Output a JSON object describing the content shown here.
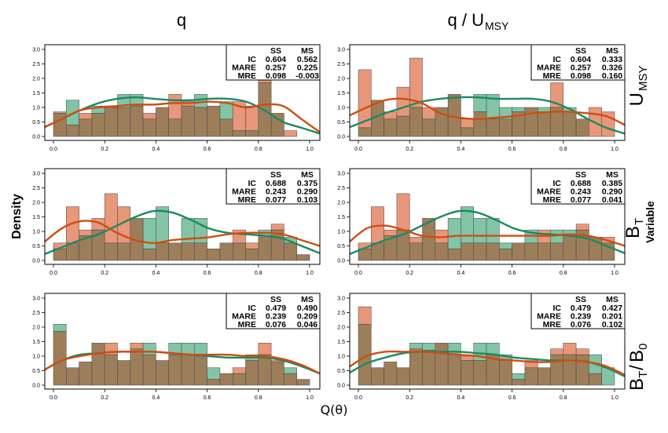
{
  "figure": {
    "col_titles": [
      "q",
      "q / U",
      "MSY"
    ],
    "row_labels": [
      {
        "main": "U",
        "sub": "MSY",
        "extra": ""
      },
      {
        "main": "B",
        "sub": "T",
        "extra": "Variable"
      },
      {
        "main": "B",
        "sub": "T",
        "div": "/",
        "main2": "B",
        "sub2": "0",
        "extra": ""
      }
    ],
    "ylabel": "Density",
    "xlabel": "Q(θ)"
  },
  "colors": {
    "ss_fill": "#82c4a6",
    "ms_fill": "#e8977a",
    "overlap_fill": "#9c7e5a",
    "ss_line": "#1b8a62",
    "ms_line": "#cf4d10"
  },
  "chart_data": [
    {
      "type": "bar",
      "id": "r1c1",
      "x_ticks": [
        "0.0",
        "0.2",
        "0.4",
        "0.6",
        "0.8",
        "1.0"
      ],
      "y_ticks": [
        "0.0",
        "0.5",
        "1.0",
        "1.5",
        "2.0",
        "2.5",
        "3.0"
      ],
      "xlim": [
        0,
        1
      ],
      "ylim": [
        0,
        3.0
      ],
      "bin_width": 0.05,
      "ss_hist": [
        0.8,
        1.25,
        0.6,
        1.05,
        1.0,
        1.45,
        1.45,
        0.6,
        1.0,
        0.6,
        1.05,
        1.45,
        1.05,
        1.2,
        0.2,
        0.2,
        1.85,
        0.8,
        0,
        0
      ],
      "ms_hist": [
        0.85,
        0.4,
        0.8,
        0.8,
        1.05,
        1.0,
        1.05,
        0.8,
        1.0,
        1.45,
        1.2,
        1.0,
        1.05,
        0.6,
        1.2,
        1.05,
        2.1,
        0.8,
        0.2,
        0
      ],
      "ss_density": [
        0.3,
        0.6,
        0.9,
        1.15,
        1.3,
        1.35,
        1.3,
        1.25,
        1.25,
        1.3,
        1.3,
        1.2,
        0.9,
        0.5,
        0.3,
        0.1
      ],
      "ms_density": [
        0.3,
        0.6,
        0.9,
        1.0,
        1.05,
        1.1,
        1.1,
        1.15,
        1.15,
        1.2,
        1.15,
        1.0,
        1.1,
        1.05,
        0.6,
        0.15
      ],
      "stats": {
        "headers": [
          "SS",
          "MS"
        ],
        "rows": [
          {
            "label": "IC",
            "ss": "0.604",
            "ms": "0.562"
          },
          {
            "label": "MARE",
            "ss": "0.257",
            "ms": "0.225"
          },
          {
            "label": "MRE",
            "ss": "0.098",
            "ms": "-0.003"
          }
        ]
      }
    },
    {
      "type": "bar",
      "id": "r1c2",
      "x_ticks": [
        "0.0",
        "0.2",
        "0.4",
        "0.6",
        "0.8",
        "1.0"
      ],
      "y_ticks": [
        "0.0",
        "0.5",
        "1.0",
        "1.5",
        "2.0",
        "2.5",
        "3.0"
      ],
      "xlim": [
        0,
        1
      ],
      "ylim": [
        0,
        3.0
      ],
      "bin_width": 0.05,
      "ss_hist": [
        0.3,
        1.25,
        0.6,
        0.7,
        1.0,
        0.6,
        1.0,
        1.45,
        0.3,
        1.45,
        1.45,
        1.0,
        1.0,
        1.0,
        1.0,
        1.0,
        1.0,
        0.6,
        0,
        0
      ],
      "ms_hist": [
        2.3,
        1.25,
        0.85,
        1.7,
        2.7,
        1.0,
        1.0,
        1.45,
        0.6,
        0.85,
        0.6,
        0.6,
        0.85,
        1.0,
        0.85,
        1.85,
        0.85,
        0.6,
        1.0,
        0.85
      ],
      "ss_density": [
        0.3,
        0.55,
        0.8,
        1.0,
        1.2,
        1.3,
        1.35,
        1.35,
        1.3,
        1.3,
        1.3,
        1.2,
        0.95,
        0.6,
        0.3,
        0.1
      ],
      "ms_density": [
        0.7,
        1.0,
        1.25,
        1.3,
        1.15,
        0.8,
        0.65,
        0.6,
        0.65,
        0.7,
        0.8,
        0.85,
        0.85,
        0.8,
        0.7,
        0.4
      ],
      "stats": {
        "headers": [
          "SS",
          "MS"
        ],
        "rows": [
          {
            "label": "IC",
            "ss": "0.604",
            "ms": "0.333"
          },
          {
            "label": "MARE",
            "ss": "0.257",
            "ms": "0.326"
          },
          {
            "label": "MRE",
            "ss": "0.098",
            "ms": "0.160"
          }
        ]
      }
    },
    {
      "type": "bar",
      "id": "r2c1",
      "x_ticks": [
        "0.0",
        "0.2",
        "0.4",
        "0.6",
        "0.8",
        "1.0"
      ],
      "y_ticks": [
        "0.0",
        "0.5",
        "1.0",
        "1.5",
        "2.0",
        "2.5",
        "3.0"
      ],
      "xlim": [
        0,
        1
      ],
      "ylim": [
        0,
        3.0
      ],
      "bin_width": 0.05,
      "ss_hist": [
        0.4,
        0.6,
        0.85,
        1.05,
        0.6,
        0.6,
        1.45,
        1.45,
        1.85,
        0.6,
        1.45,
        1.45,
        0.4,
        0.6,
        0.6,
        0.4,
        1.05,
        1.05,
        0.8,
        0.2
      ],
      "ms_hist": [
        0.6,
        1.85,
        1.05,
        1.45,
        2.3,
        1.85,
        1.45,
        0.4,
        0.6,
        0.6,
        0.6,
        0.6,
        0.4,
        0.6,
        1.05,
        0.6,
        0.85,
        1.25,
        0.6,
        0.2
      ],
      "ss_density": [
        0.2,
        0.45,
        0.7,
        0.9,
        1.2,
        1.5,
        1.7,
        1.65,
        1.4,
        1.1,
        0.95,
        0.9,
        0.85,
        0.75,
        0.5,
        0.25
      ],
      "ms_density": [
        0.6,
        1.1,
        1.35,
        1.3,
        0.95,
        0.7,
        0.6,
        0.7,
        0.75,
        0.8,
        0.9,
        0.95,
        0.95,
        0.9,
        0.7,
        0.5
      ],
      "stats": {
        "headers": [
          "SS",
          "MS"
        ],
        "rows": [
          {
            "label": "IC",
            "ss": "0.688",
            "ms": "0.375"
          },
          {
            "label": "MARE",
            "ss": "0.243",
            "ms": "0.290"
          },
          {
            "label": "MRE",
            "ss": "0.077",
            "ms": "0.103"
          }
        ]
      }
    },
    {
      "type": "bar",
      "id": "r2c2",
      "x_ticks": [
        "0.0",
        "0.2",
        "0.4",
        "0.6",
        "0.8",
        "1.0"
      ],
      "y_ticks": [
        "0.0",
        "0.5",
        "1.0",
        "1.5",
        "2.0",
        "2.5",
        "3.0"
      ],
      "xlim": [
        0,
        1
      ],
      "ylim": [
        0,
        3.0
      ],
      "bin_width": 0.05,
      "ss_hist": [
        0.4,
        0.6,
        0.85,
        1.05,
        0.6,
        1.45,
        0.6,
        1.45,
        1.85,
        1.45,
        1.45,
        0.6,
        0.6,
        1.05,
        0.6,
        1.05,
        1.05,
        1.05,
        0.8,
        0.6
      ],
      "ms_hist": [
        0.6,
        1.85,
        1.05,
        2.3,
        0.8,
        1.45,
        1.05,
        0.4,
        0.6,
        0.6,
        0.6,
        0.4,
        0.6,
        0.6,
        1.05,
        0.6,
        0.85,
        1.25,
        0.8,
        0.8
      ],
      "ss_density": [
        0.2,
        0.45,
        0.7,
        0.9,
        1.2,
        1.5,
        1.7,
        1.65,
        1.4,
        1.1,
        0.95,
        0.9,
        0.85,
        0.75,
        0.5,
        0.25
      ],
      "ms_density": [
        0.6,
        1.1,
        1.2,
        1.05,
        0.85,
        0.8,
        0.85,
        0.85,
        0.85,
        0.85,
        0.85,
        0.85,
        0.9,
        0.85,
        0.7,
        0.5
      ],
      "stats": {
        "headers": [
          "SS",
          "MS"
        ],
        "rows": [
          {
            "label": "IC",
            "ss": "0.688",
            "ms": "0.385"
          },
          {
            "label": "MARE",
            "ss": "0.243",
            "ms": "0.290"
          },
          {
            "label": "MRE",
            "ss": "0.077",
            "ms": "0.041"
          }
        ]
      }
    },
    {
      "type": "bar",
      "id": "r3c1",
      "x_ticks": [
        "0.0",
        "0.2",
        "0.4",
        "0.6",
        "0.8",
        "1.0"
      ],
      "y_ticks": [
        "0.0",
        "0.5",
        "1.0",
        "1.5",
        "2.0",
        "2.5",
        "3.0"
      ],
      "xlim": [
        0,
        1
      ],
      "ylim": [
        0,
        3.0
      ],
      "bin_width": 0.05,
      "ss_hist": [
        2.1,
        0.6,
        0.8,
        1.45,
        1.05,
        0.85,
        1.25,
        1.45,
        0.85,
        1.45,
        1.45,
        1.45,
        0.6,
        0.4,
        0.4,
        1.05,
        1.05,
        0.8,
        0.6,
        0.2
      ],
      "ms_hist": [
        1.85,
        0.6,
        0.8,
        1.45,
        1.45,
        0.85,
        1.45,
        1.05,
        0.85,
        1.05,
        1.05,
        1.0,
        0.2,
        0.4,
        0.6,
        0.85,
        1.45,
        0.85,
        0.4,
        0.2
      ],
      "ss_density": [
        0.5,
        0.85,
        1.05,
        1.1,
        1.15,
        1.15,
        1.15,
        1.1,
        1.05,
        1.0,
        0.95,
        0.95,
        0.95,
        0.85,
        0.65,
        0.4
      ],
      "ms_density": [
        0.5,
        0.85,
        1.0,
        1.1,
        1.15,
        1.15,
        1.15,
        1.1,
        1.05,
        1.05,
        1.05,
        1.0,
        1.0,
        0.9,
        0.7,
        0.4
      ],
      "stats": {
        "headers": [
          "SS",
          "MS"
        ],
        "rows": [
          {
            "label": "IC",
            "ss": "0.479",
            "ms": "0.490"
          },
          {
            "label": "MARE",
            "ss": "0.239",
            "ms": "0.209"
          },
          {
            "label": "MRE",
            "ss": "0.076",
            "ms": "0.046"
          }
        ]
      }
    },
    {
      "type": "bar",
      "id": "r3c2",
      "x_ticks": [
        "0.0",
        "0.2",
        "0.4",
        "0.6",
        "0.8",
        "1.0"
      ],
      "y_ticks": [
        "0.0",
        "0.5",
        "1.0",
        "1.5",
        "2.0",
        "2.5",
        "3.0"
      ],
      "xlim": [
        0,
        1
      ],
      "ylim": [
        0,
        3.0
      ],
      "bin_width": 0.05,
      "ss_hist": [
        2.1,
        0.6,
        0.8,
        0.6,
        1.45,
        1.45,
        1.45,
        1.45,
        0.85,
        1.45,
        1.45,
        1.05,
        0.4,
        0.6,
        0.6,
        1.05,
        1.05,
        1.05,
        1.05,
        0.6
      ],
      "ms_hist": [
        2.7,
        0.6,
        0.8,
        0.6,
        1.25,
        1.2,
        1.45,
        1.05,
        1.0,
        0.85,
        1.05,
        0.85,
        0.2,
        0.85,
        0.6,
        1.25,
        1.45,
        1.25,
        0.4,
        0
      ],
      "ss_density": [
        0.4,
        0.75,
        0.95,
        1.1,
        1.15,
        1.15,
        1.15,
        1.1,
        1.05,
        0.95,
        0.9,
        0.85,
        0.85,
        0.8,
        0.6,
        0.3
      ],
      "ms_density": [
        0.6,
        1.0,
        1.15,
        1.15,
        1.15,
        1.1,
        1.05,
        1.0,
        0.9,
        0.85,
        0.8,
        0.8,
        0.85,
        0.8,
        0.65,
        0.35
      ],
      "stats": {
        "headers": [
          "SS",
          "MS"
        ],
        "rows": [
          {
            "label": "IC",
            "ss": "0.479",
            "ms": "0.427"
          },
          {
            "label": "MARE",
            "ss": "0.239",
            "ms": "0.201"
          },
          {
            "label": "MRE",
            "ss": "0.076",
            "ms": "0.102"
          }
        ]
      }
    }
  ]
}
